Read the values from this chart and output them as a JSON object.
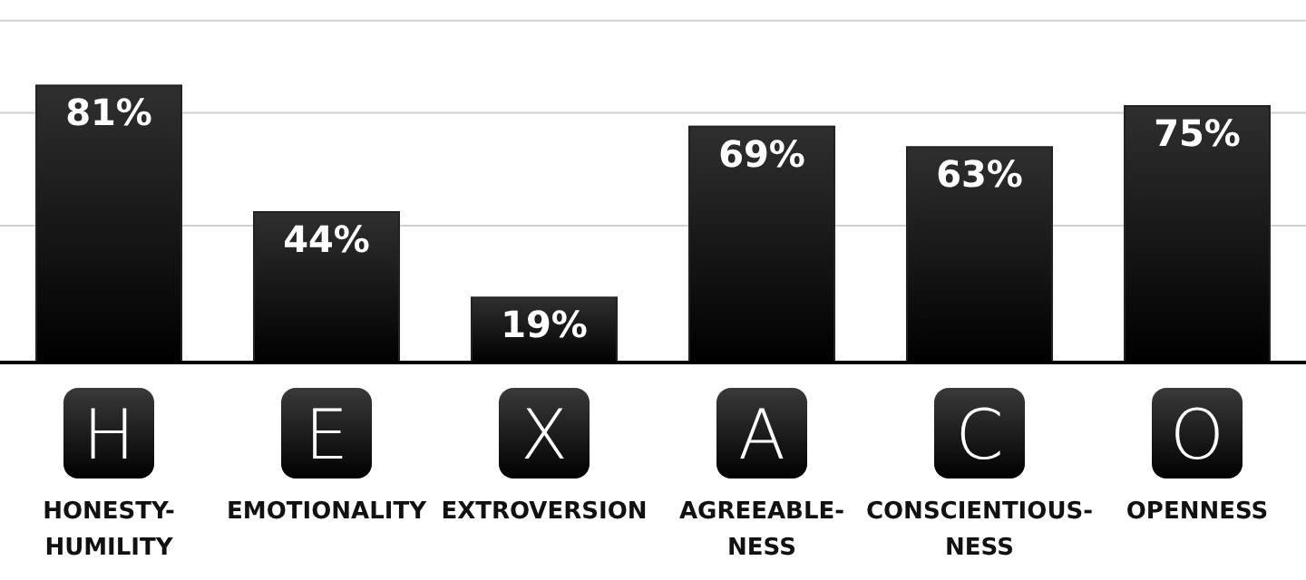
{
  "chart_data": {
    "type": "bar",
    "categories": [
      "HONESTY-HUMILITY",
      "EMOTIONALITY",
      "EXTROVERSION",
      "AGREEABLE-NESS",
      "CONSCIENTIOUS-NESS",
      "OPENNESS"
    ],
    "values": [
      81,
      44,
      19,
      69,
      63,
      75
    ],
    "value_labels": [
      "81%",
      "44%",
      "19%",
      "69%",
      "63%",
      "75%"
    ],
    "color": "#222222",
    "ylim": [
      0,
      106
    ],
    "yticks": [
      {
        "value": 40,
        "label": null
      },
      {
        "value": 73,
        "label": null
      },
      {
        "value": 100,
        "label": null
      }
    ],
    "grid": "y",
    "tick_labels": "x",
    "annotations": [
      "H",
      "E",
      "X",
      "A",
      "C",
      "O"
    ]
  }
}
